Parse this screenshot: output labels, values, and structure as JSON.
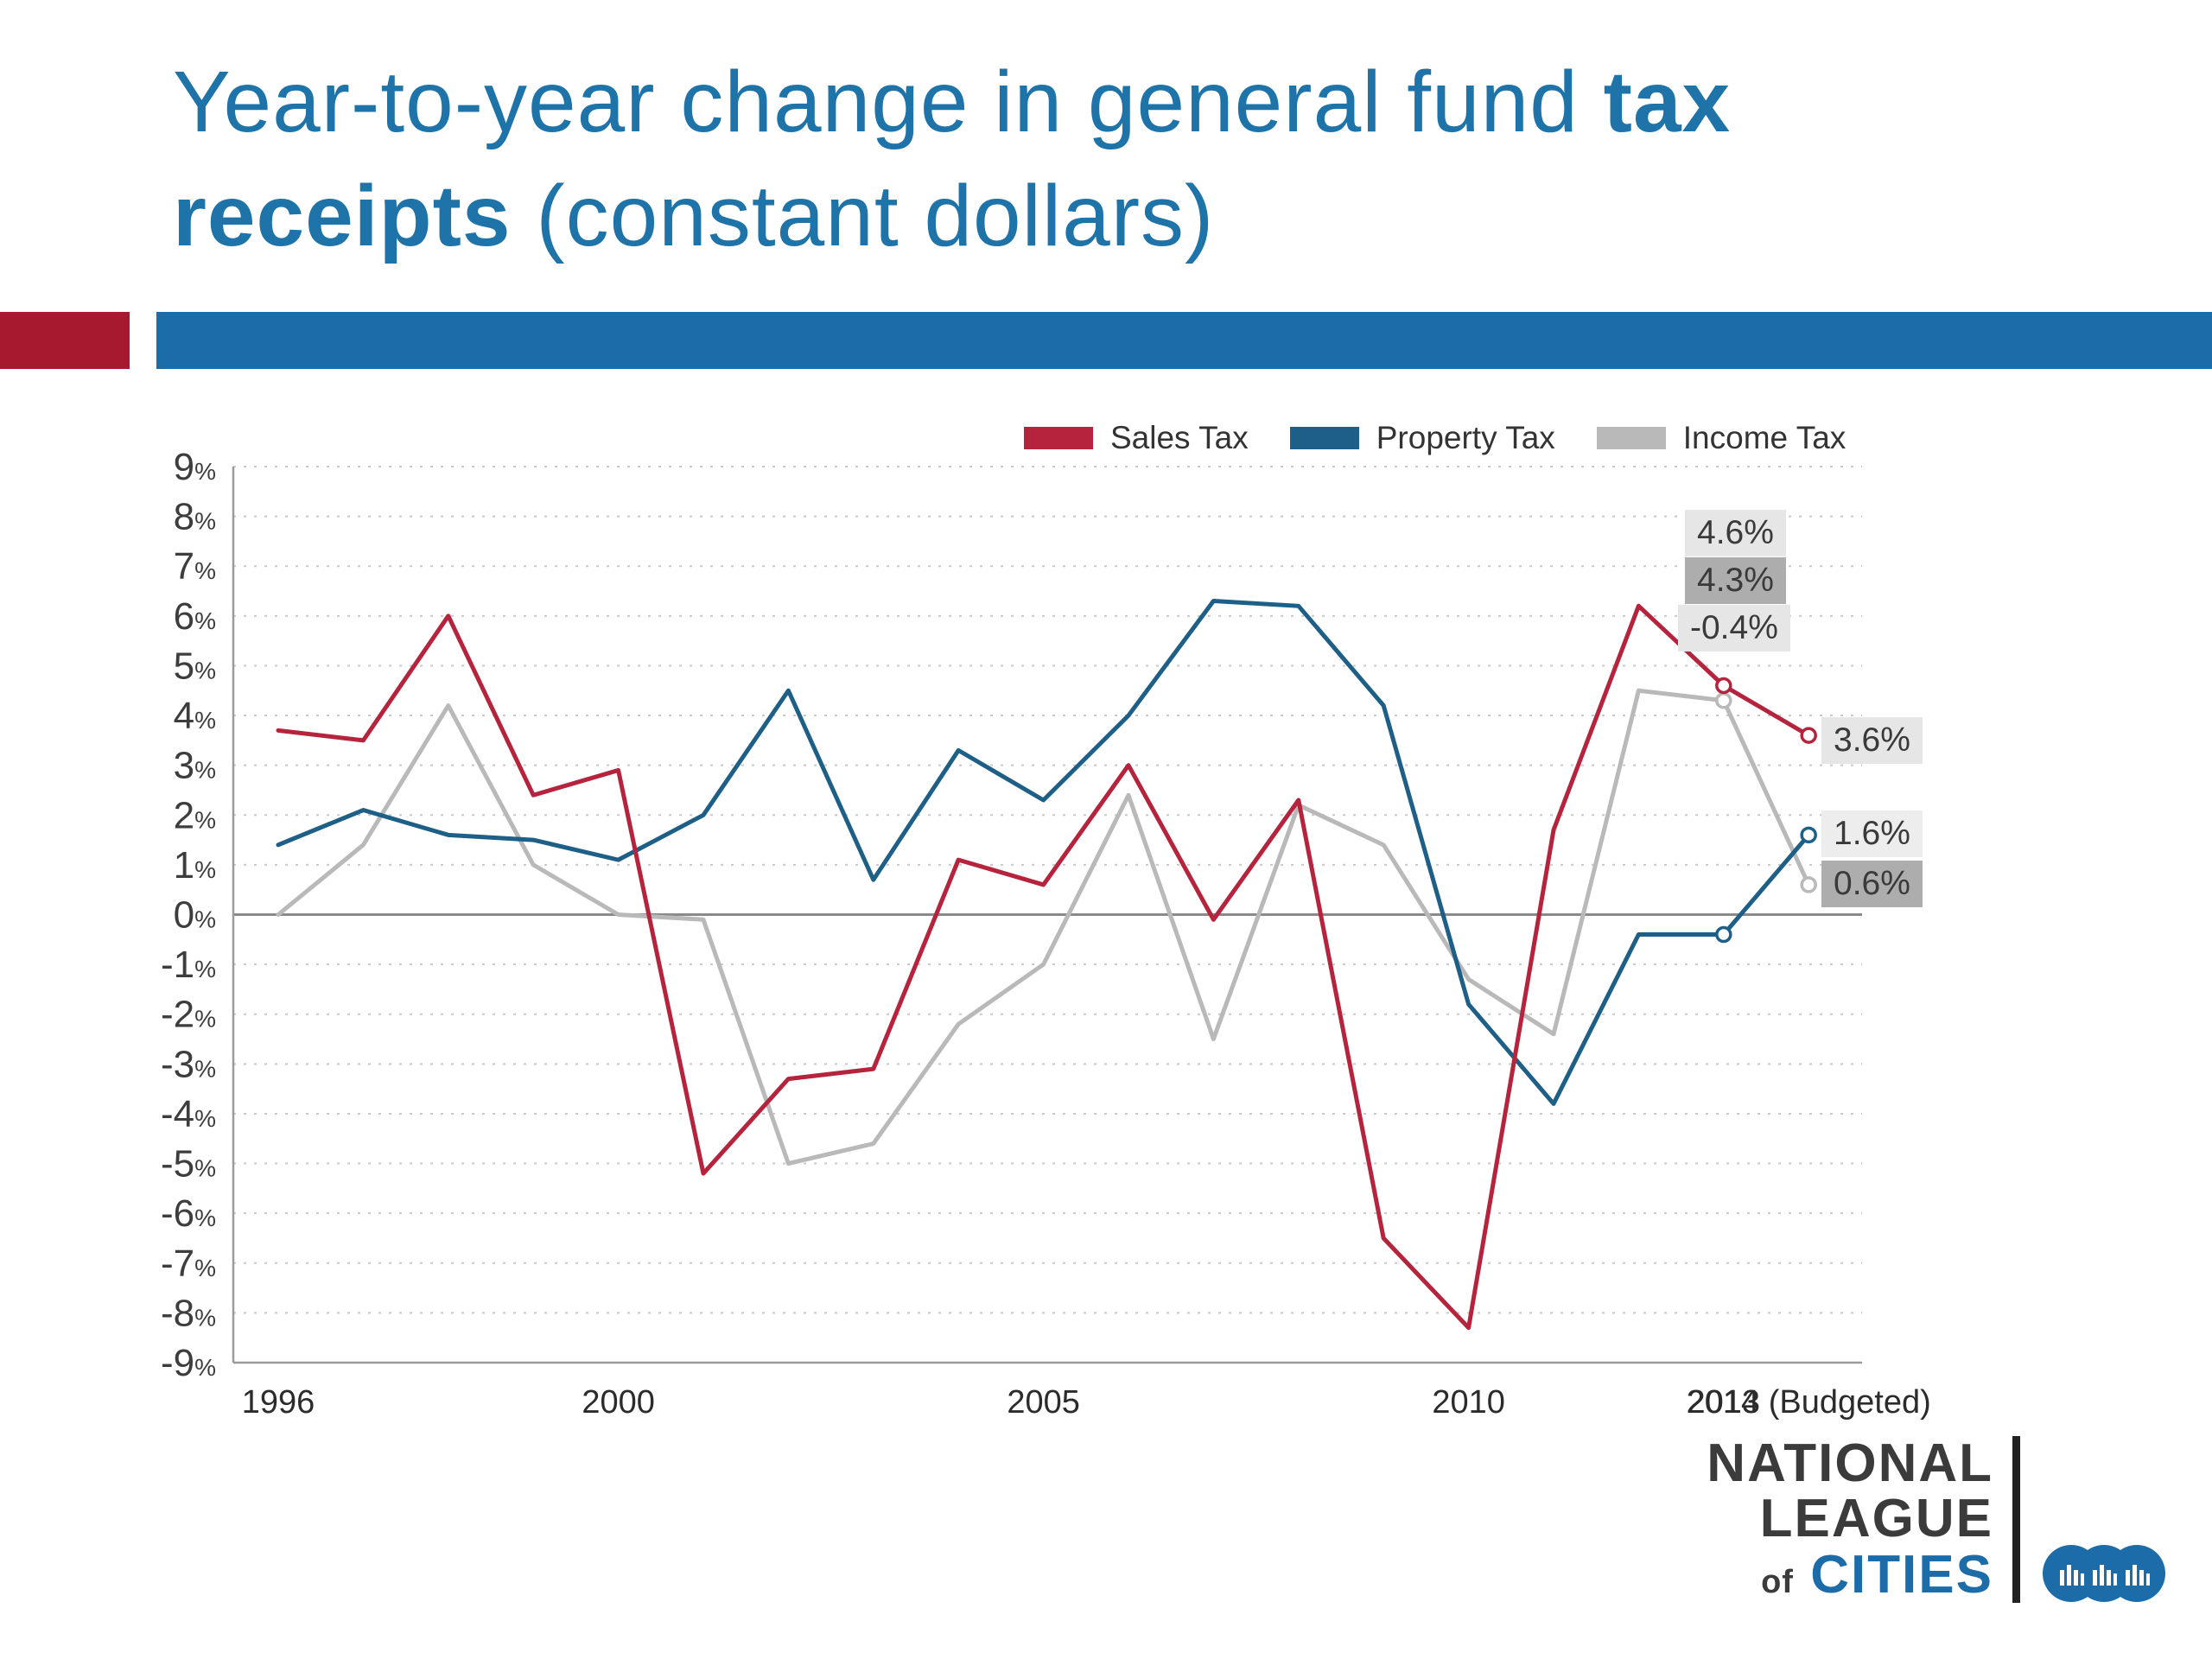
{
  "title": {
    "line1_normal": "Year-to-year change in general fund ",
    "line1_bold": "tax",
    "line2_bold": "receipts",
    "line2_normal": " (constant dollars)"
  },
  "colors": {
    "title_blue": "#1E73A8",
    "accent_red": "#A6192E",
    "accent_blue": "#1B6CA8",
    "sales_red": "#B5243C",
    "property_blue": "#1D5F87",
    "income_gray": "#B9B9B9",
    "zero_line": "#8A8A8A",
    "gridline": "#C9C9C9"
  },
  "legend": [
    {
      "key": "sales",
      "label": "Sales Tax",
      "color": "#B5243C"
    },
    {
      "key": "property",
      "label": "Property Tax",
      "color": "#1D5F87"
    },
    {
      "key": "income",
      "label": "Income Tax",
      "color": "#B9B9B9"
    }
  ],
  "chart_data": {
    "type": "line",
    "title": "Year-to-year change in general fund tax receipts (constant dollars)",
    "x": [
      1996,
      1997,
      1998,
      1999,
      2000,
      2001,
      2002,
      2003,
      2004,
      2005,
      2006,
      2007,
      2008,
      2009,
      2010,
      2011,
      2012,
      2013,
      2014
    ],
    "series": [
      {
        "name": "Sales Tax",
        "color": "#B5243C",
        "values": [
          3.7,
          3.5,
          6.0,
          2.4,
          2.9,
          -5.2,
          -3.3,
          -3.1,
          1.1,
          0.6,
          3.0,
          -0.1,
          2.3,
          -6.5,
          -8.3,
          1.7,
          6.2,
          4.6,
          3.6
        ]
      },
      {
        "name": "Property Tax",
        "color": "#1D5F87",
        "values": [
          1.4,
          2.1,
          1.6,
          1.5,
          1.1,
          2.0,
          4.5,
          0.7,
          3.3,
          2.3,
          4.0,
          6.3,
          6.2,
          4.2,
          -1.8,
          -3.8,
          -0.4,
          -0.4,
          1.6
        ]
      },
      {
        "name": "Income Tax",
        "color": "#B9B9B9",
        "values": [
          0.0,
          1.4,
          4.2,
          1.0,
          0.0,
          -0.1,
          -5.0,
          -4.6,
          -2.2,
          -1.0,
          2.4,
          -2.5,
          2.2,
          1.4,
          -1.3,
          -2.4,
          4.5,
          4.3,
          0.6
        ]
      }
    ],
    "ylim": [
      -9,
      9
    ],
    "y_ticks": [
      9,
      8,
      7,
      6,
      5,
      4,
      3,
      2,
      1,
      0,
      -1,
      -2,
      -3,
      -4,
      -5,
      -6,
      -7,
      -8,
      -9
    ],
    "y_suffix": "%",
    "x_ticks": [
      {
        "index": 0,
        "label": "1996"
      },
      {
        "index": 4,
        "label": "2000"
      },
      {
        "index": 9,
        "label": "2005"
      },
      {
        "index": 14,
        "label": "2010"
      },
      {
        "index": 17,
        "label": "2013"
      },
      {
        "index": 18,
        "label": "2014 (Budgeted)"
      }
    ],
    "grid": "dashed horizontal",
    "legend_position": "top-right"
  },
  "annotations": {
    "sales_2013": "4.6%",
    "income_2013": "4.3%",
    "property_2013": "-0.4%",
    "sales_2014": "3.6%",
    "property_2014": "1.6%",
    "income_2014": "0.6%"
  },
  "logo": {
    "line1": "NATIONAL",
    "line2": "LEAGUE",
    "line3_small": "of",
    "line3": "CITIES"
  }
}
